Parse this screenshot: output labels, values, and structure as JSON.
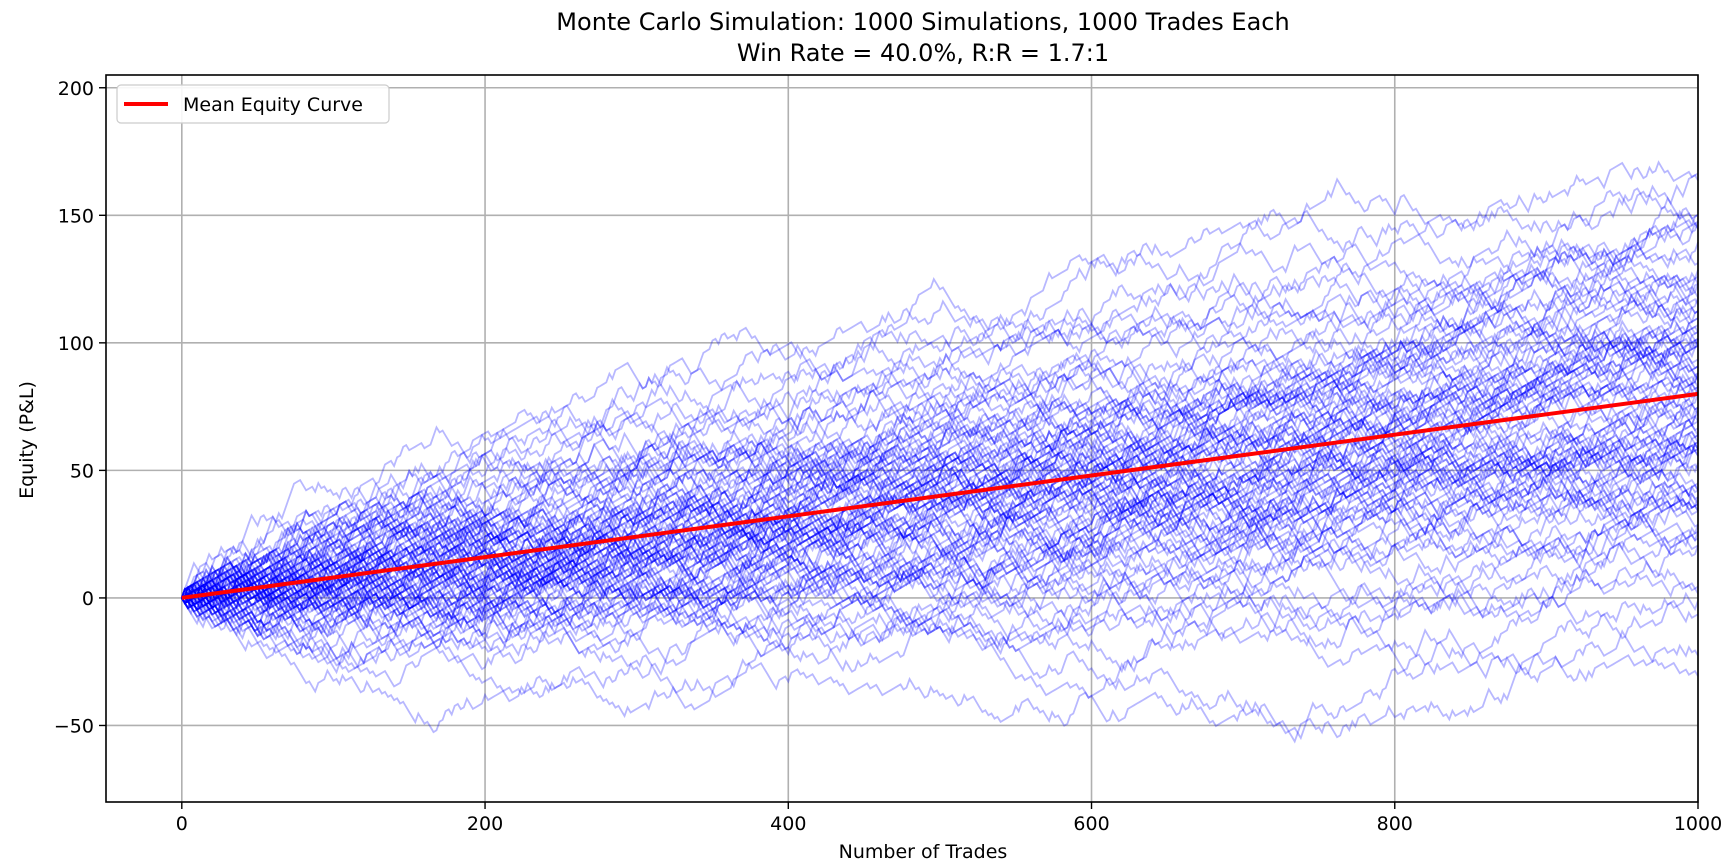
{
  "chart_data": {
    "type": "line",
    "title": "Monte Carlo Simulation: 1000 Simulations, 1000 Trades Each",
    "subtitle": "Win Rate = 40.0%, R:R = 1.7:1",
    "xlabel": "Number of Trades",
    "ylabel": "Equity (P&L)",
    "xlim": [
      -50,
      1000
    ],
    "ylim": [
      -80,
      205
    ],
    "xticks": [
      0,
      200,
      400,
      600,
      800,
      1000
    ],
    "yticks": [
      -50,
      0,
      50,
      100,
      150,
      200
    ],
    "xtick_labels": [
      "0",
      "200",
      "400",
      "600",
      "800",
      "1000"
    ],
    "ytick_labels": [
      "−50",
      "0",
      "50",
      "100",
      "150",
      "200"
    ],
    "grid": true,
    "legend_position": "top-left",
    "simulations": 1000,
    "trades_per_simulation": 1000,
    "win_rate": 0.4,
    "reward_risk": 1.7,
    "series": [
      {
        "name": "Mean Equity Curve",
        "color": "#ff0000",
        "x": [
          0,
          100,
          200,
          300,
          400,
          500,
          600,
          700,
          800,
          900,
          1000
        ],
        "y": [
          0,
          8,
          16,
          24,
          32,
          40,
          48,
          56,
          64,
          72,
          80
        ]
      }
    ],
    "simulation_paths": {
      "color": "#0000ff",
      "opacity": 0.28,
      "drawn_paths": 100,
      "final_value_range": [
        -15,
        193
      ],
      "min_value": -66,
      "max_value": 193
    }
  }
}
